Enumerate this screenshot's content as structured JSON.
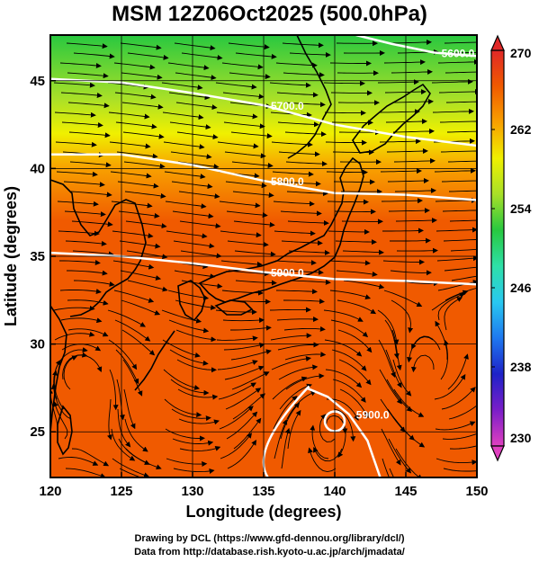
{
  "title": "MSM 12Z06Oct2025 (500.0hPa)",
  "credits": {
    "line1": "Drawing by DCL (https://www.gfd-dennou.org/library/dcl/)",
    "line2": "Data from http://database.rish.kyoto-u.ac.jp/arch/jmadata/"
  },
  "chart_data": {
    "type": "heatmap",
    "title": "MSM 12Z06Oct2025 (500.0hPa)",
    "xlabel": "Longitude (degrees)",
    "ylabel": "Latitude  (degrees)",
    "xlim": [
      120,
      150
    ],
    "ylim": [
      22.4,
      47.6
    ],
    "x_ticks": [
      120,
      125,
      130,
      135,
      140,
      145,
      150
    ],
    "y_ticks": [
      25,
      30,
      35,
      40,
      45
    ],
    "grid": true,
    "colorbar": {
      "min": 230,
      "max": 270,
      "tick_labels": [
        230,
        238,
        246,
        254,
        262,
        270
      ],
      "colors": [
        "#e040c0",
        "#7a1ec8",
        "#1e22c8",
        "#1e78f0",
        "#28c8f0",
        "#2ee0a8",
        "#28c840",
        "#a8e028",
        "#f0f000",
        "#f8a000",
        "#f05a00",
        "#e02828"
      ],
      "placement": "right"
    },
    "temperature_field": {
      "note": "temperature K by latitude band",
      "bands": [
        {
          "lat": 47.6,
          "value": 253
        },
        {
          "lat": 44,
          "value": 256
        },
        {
          "lat": 42,
          "value": 259
        },
        {
          "lat": 40,
          "value": 262
        },
        {
          "lat": 37,
          "value": 265
        },
        {
          "lat": 34,
          "value": 268
        },
        {
          "lat": 22.4,
          "value": 268
        }
      ]
    },
    "height_contours": [
      {
        "label": "5700.0",
        "points": [
          [
            120,
            45.1
          ],
          [
            125,
            44.9
          ],
          [
            130,
            44.3
          ],
          [
            135,
            43.6
          ],
          [
            140,
            42.5
          ],
          [
            145,
            41.8
          ],
          [
            150,
            41.3
          ]
        ]
      },
      {
        "label": "5800.0",
        "points": [
          [
            120,
            40.8
          ],
          [
            125,
            40.8
          ],
          [
            130,
            40.2
          ],
          [
            135,
            39.3
          ],
          [
            140,
            38.6
          ],
          [
            145,
            38.5
          ],
          [
            150,
            38.2
          ]
        ]
      },
      {
        "label": "5900.0",
        "points": [
          [
            120,
            35.2
          ],
          [
            125,
            35.0
          ],
          [
            130,
            34.6
          ],
          [
            135,
            34.1
          ],
          [
            140,
            33.7
          ],
          [
            145,
            33.6
          ],
          [
            150,
            33.4
          ]
        ]
      },
      {
        "label": "5900.0",
        "points": [
          [
            138.0,
            27.5
          ],
          [
            139.5,
            27.0
          ],
          [
            141.0,
            26.0
          ],
          [
            142.3,
            24.5
          ],
          [
            143.2,
            22.4
          ]
        ]
      },
      {
        "label": "5600.0",
        "points": [
          [
            141.5,
            47.6
          ],
          [
            144.0,
            47.1
          ],
          [
            147.0,
            46.6
          ],
          [
            150,
            46.4
          ]
        ]
      }
    ],
    "contour_label_values": [
      "5700.0",
      "5800.0",
      "5900.0",
      "5900.0",
      "5600.0"
    ]
  }
}
